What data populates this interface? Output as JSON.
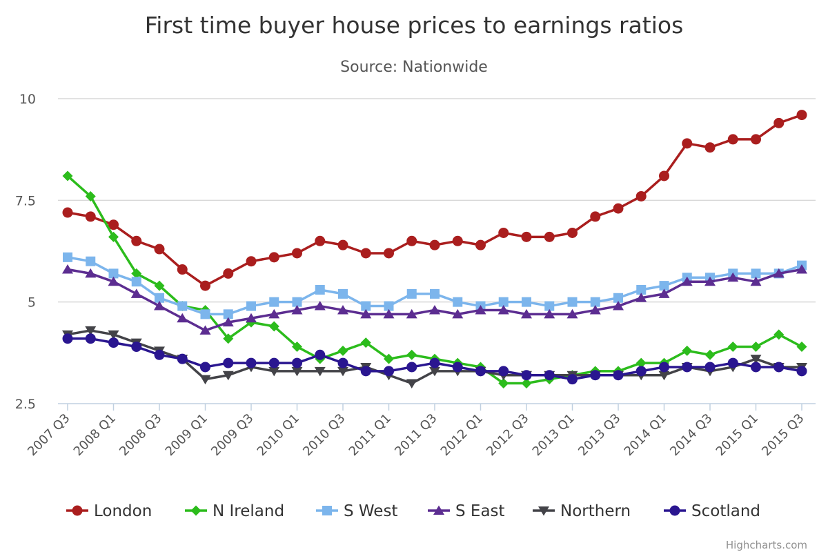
{
  "chart_data": {
    "type": "line",
    "title": "First time buyer house prices to earnings ratios",
    "subtitle": "Source: Nationwide",
    "credits": "Highcharts.com",
    "xlabel": "",
    "ylabel": "",
    "ylim": [
      2.5,
      10
    ],
    "yticks": [
      2.5,
      5,
      7.5,
      10
    ],
    "ytick_labels": [
      "2.5",
      "5",
      "7.5",
      "10"
    ],
    "x": [
      "2007 Q3",
      "2007 Q4",
      "2008 Q1",
      "2008 Q2",
      "2008 Q3",
      "2008 Q4",
      "2009 Q1",
      "2009 Q2",
      "2009 Q3",
      "2009 Q4",
      "2010 Q1",
      "2010 Q2",
      "2010 Q3",
      "2010 Q4",
      "2011 Q1",
      "2011 Q2",
      "2011 Q3",
      "2011 Q4",
      "2012 Q1",
      "2012 Q2",
      "2012 Q3",
      "2012 Q4",
      "2013 Q1",
      "2013 Q2",
      "2013 Q3",
      "2013 Q4",
      "2014 Q1",
      "2014 Q2",
      "2014 Q3",
      "2014 Q4",
      "2015 Q1",
      "2015 Q2",
      "2015 Q3"
    ],
    "xtick_labels": [
      "2007 Q3",
      "2008 Q1",
      "2008 Q3",
      "2009 Q1",
      "2009 Q3",
      "2010 Q1",
      "2010 Q3",
      "2011 Q1",
      "2011 Q3",
      "2012 Q1",
      "2012 Q3",
      "2013 Q1",
      "2013 Q3",
      "2014 Q1",
      "2014 Q3",
      "2015 Q1",
      "2015 Q3"
    ],
    "grid": true,
    "legend_position": "bottom",
    "series": [
      {
        "name": "London",
        "color": "#aa1e1e",
        "marker": "circle",
        "values": [
          7.2,
          7.1,
          6.9,
          6.5,
          6.3,
          5.8,
          5.4,
          5.7,
          6.0,
          6.1,
          6.2,
          6.5,
          6.4,
          6.2,
          6.2,
          6.5,
          6.4,
          6.5,
          6.4,
          6.7,
          6.6,
          6.6,
          6.7,
          7.1,
          7.3,
          7.6,
          8.1,
          8.9,
          8.8,
          9.0,
          9.0,
          9.4,
          9.6
        ]
      },
      {
        "name": "N Ireland",
        "color": "#2cbc1c",
        "marker": "diamond",
        "values": [
          8.1,
          7.6,
          6.6,
          5.7,
          5.4,
          4.9,
          4.8,
          4.1,
          4.5,
          4.4,
          3.9,
          3.6,
          3.8,
          4.0,
          3.6,
          3.7,
          3.6,
          3.5,
          3.4,
          3.0,
          3.0,
          3.1,
          3.2,
          3.3,
          3.3,
          3.5,
          3.5,
          3.8,
          3.7,
          3.9,
          3.9,
          4.2,
          3.9
        ]
      },
      {
        "name": "S West",
        "color": "#7cb5ec",
        "marker": "square",
        "values": [
          6.1,
          6.0,
          5.7,
          5.5,
          5.1,
          4.9,
          4.7,
          4.7,
          4.9,
          5.0,
          5.0,
          5.3,
          5.2,
          4.9,
          4.9,
          5.2,
          5.2,
          5.0,
          4.9,
          5.0,
          5.0,
          4.9,
          5.0,
          5.0,
          5.1,
          5.3,
          5.4,
          5.6,
          5.6,
          5.7,
          5.7,
          5.7,
          5.9
        ]
      },
      {
        "name": "S East",
        "color": "#5c2d91",
        "marker": "triangle",
        "values": [
          5.8,
          5.7,
          5.5,
          5.2,
          4.9,
          4.6,
          4.3,
          4.5,
          4.6,
          4.7,
          4.8,
          4.9,
          4.8,
          4.7,
          4.7,
          4.7,
          4.8,
          4.7,
          4.8,
          4.8,
          4.7,
          4.7,
          4.7,
          4.8,
          4.9,
          5.1,
          5.2,
          5.5,
          5.5,
          5.6,
          5.5,
          5.7,
          5.8
        ]
      },
      {
        "name": "Northern",
        "color": "#434348",
        "marker": "triangle-down",
        "values": [
          4.2,
          4.3,
          4.2,
          4.0,
          3.8,
          3.6,
          3.1,
          3.2,
          3.4,
          3.3,
          3.3,
          3.3,
          3.3,
          3.4,
          3.2,
          3.0,
          3.3,
          3.3,
          3.3,
          3.2,
          3.2,
          3.2,
          3.2,
          3.2,
          3.2,
          3.2,
          3.2,
          3.4,
          3.3,
          3.4,
          3.6,
          3.4,
          3.4
        ]
      },
      {
        "name": "Scotland",
        "color": "#2a1690",
        "marker": "circle",
        "values": [
          4.1,
          4.1,
          4.0,
          3.9,
          3.7,
          3.6,
          3.4,
          3.5,
          3.5,
          3.5,
          3.5,
          3.7,
          3.5,
          3.3,
          3.3,
          3.4,
          3.5,
          3.4,
          3.3,
          3.3,
          3.2,
          3.2,
          3.1,
          3.2,
          3.2,
          3.3,
          3.4,
          3.4,
          3.4,
          3.5,
          3.4,
          3.4,
          3.3
        ]
      }
    ]
  }
}
